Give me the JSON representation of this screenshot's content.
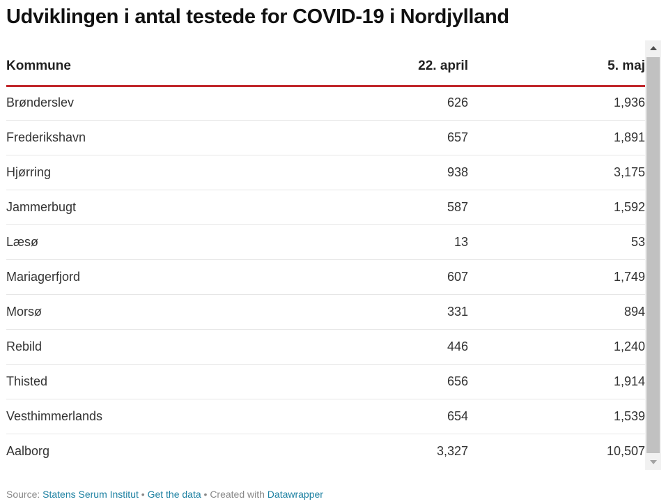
{
  "title": "Udviklingen i antal testede for COVID-19 i Nordjylland",
  "table": {
    "headers": [
      "Kommune",
      "22. april",
      "5. maj"
    ],
    "rows": [
      [
        "Brønderslev",
        "626",
        "1,936"
      ],
      [
        "Frederikshavn",
        "657",
        "1,891"
      ],
      [
        "Hjørring",
        "938",
        "3,175"
      ],
      [
        "Jammerbugt",
        "587",
        "1,592"
      ],
      [
        "Læsø",
        "13",
        "53"
      ],
      [
        "Mariagerfjord",
        "607",
        "1,749"
      ],
      [
        "Morsø",
        "331",
        "894"
      ],
      [
        "Rebild",
        "446",
        "1,240"
      ],
      [
        "Thisted",
        "656",
        "1,914"
      ],
      [
        "Vesthimmerlands",
        "654",
        "1,539"
      ],
      [
        "Aalborg",
        "3,327",
        "10,507"
      ]
    ]
  },
  "footer": {
    "source_label": "Source:",
    "source_link": "Statens Serum Institut",
    "sep1": "•",
    "get_data": "Get the data",
    "sep2": "•",
    "created_with": "Created with",
    "datawrapper": "Datawrapper"
  },
  "colors": {
    "header_rule": "#c0262b",
    "link": "#1d81a2"
  }
}
